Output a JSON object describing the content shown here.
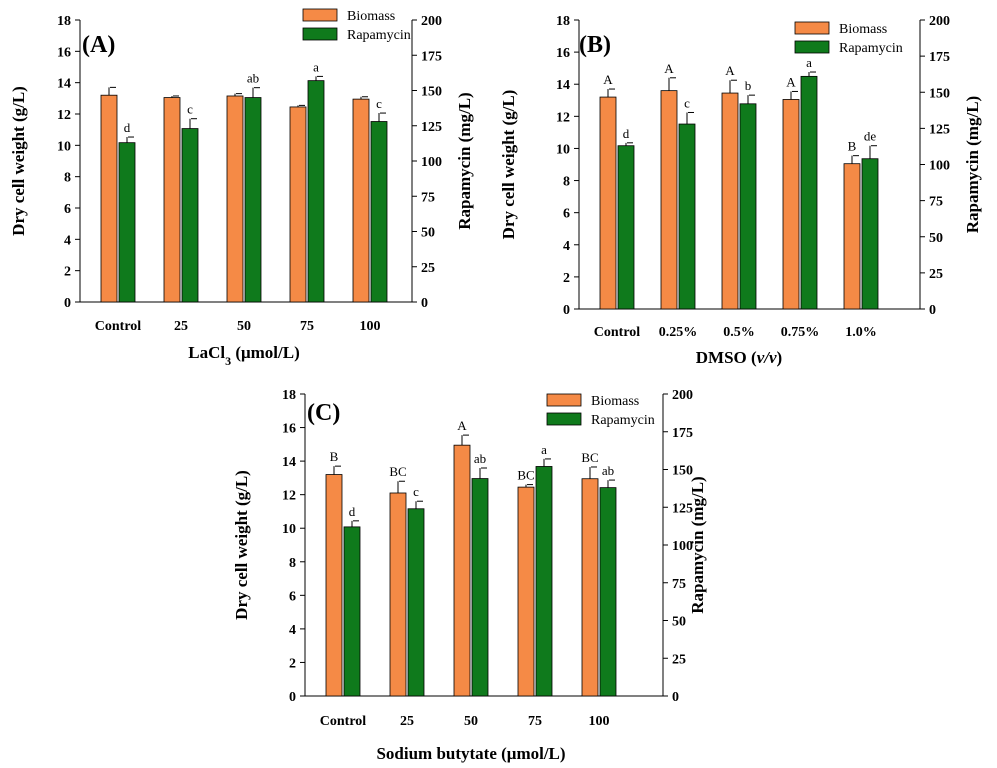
{
  "chart_data": [
    {
      "id": "A",
      "type": "bar",
      "panel_label": "(A)",
      "title": "",
      "xlabel_parts": [
        {
          "text": "LaCl",
          "style": "normal"
        },
        {
          "text": "3",
          "style": "sub"
        },
        {
          "text": " (μmol/L)",
          "style": "normal"
        }
      ],
      "ylabel": "Dry cell weight (g/L)",
      "y2label": "Rapamycin (mg/L)",
      "ylim": [
        0,
        18
      ],
      "y2lim": [
        0,
        200
      ],
      "yticks": [
        0,
        2,
        4,
        6,
        8,
        10,
        12,
        14,
        16,
        18
      ],
      "y2ticks": [
        0,
        25,
        50,
        75,
        100,
        125,
        150,
        175,
        200
      ],
      "categories": [
        "Control",
        "25",
        "50",
        "75",
        "100"
      ],
      "legend_position": "top-right",
      "series": [
        {
          "name": "Biomass",
          "axis": "left",
          "color": "#F58A46",
          "values": [
            13.2,
            13.05,
            13.15,
            12.45,
            12.95
          ],
          "errors": [
            0.5,
            0.1,
            0.15,
            0.1,
            0.15
          ],
          "labels": [
            "",
            "",
            "",
            "",
            ""
          ]
        },
        {
          "name": "Rapamycin",
          "axis": "right",
          "color": "#0F7A1C",
          "values": [
            113,
            123,
            145,
            157,
            128
          ],
          "errors": [
            4,
            7,
            7,
            3,
            6
          ],
          "labels": [
            "d",
            "c",
            "ab",
            "a",
            "c"
          ]
        }
      ]
    },
    {
      "id": "B",
      "type": "bar",
      "panel_label": "(B)",
      "title": "",
      "xlabel_parts": [
        {
          "text": "DMSO (",
          "style": "normal"
        },
        {
          "text": "v/v",
          "style": "italic"
        },
        {
          "text": ")",
          "style": "normal"
        }
      ],
      "ylabel": "Dry cell weight (g/L)",
      "y2label": "Rapamycin (mg/L)",
      "ylim": [
        0,
        18
      ],
      "y2lim": [
        0,
        200
      ],
      "yticks": [
        0,
        2,
        4,
        6,
        8,
        10,
        12,
        14,
        16,
        18
      ],
      "y2ticks": [
        0,
        25,
        50,
        75,
        100,
        125,
        150,
        175,
        200
      ],
      "categories": [
        "Control",
        "0.25%",
        "0.5%",
        "0.75%",
        "1.0%"
      ],
      "legend_position": "top-right",
      "series": [
        {
          "name": "Biomass",
          "axis": "left",
          "color": "#F58A46",
          "values": [
            13.2,
            13.6,
            13.45,
            13.05,
            9.05
          ],
          "errors": [
            0.5,
            0.8,
            0.8,
            0.5,
            0.5
          ],
          "labels": [
            "A",
            "A",
            "A",
            "A",
            "B"
          ]
        },
        {
          "name": "Rapamycin",
          "axis": "right",
          "color": "#0F7A1C",
          "values": [
            113,
            128,
            142,
            161,
            104
          ],
          "errors": [
            2,
            8,
            6,
            3,
            9
          ],
          "labels": [
            "d",
            "c",
            "b",
            "a",
            "de"
          ]
        }
      ]
    },
    {
      "id": "C",
      "type": "bar",
      "panel_label": "(C)",
      "title": "",
      "xlabel_parts": [
        {
          "text": "Sodium butytate (μmol/L)",
          "style": "normal"
        }
      ],
      "ylabel": "Dry cell weight (g/L)",
      "y2label": "Rapamycin (mg/L)",
      "ylim": [
        0,
        18
      ],
      "y2lim": [
        0,
        200
      ],
      "yticks": [
        0,
        2,
        4,
        6,
        8,
        10,
        12,
        14,
        16,
        18
      ],
      "y2ticks": [
        0,
        25,
        50,
        75,
        100,
        125,
        150,
        175,
        200
      ],
      "categories": [
        "Control",
        "25",
        "50",
        "75",
        "100"
      ],
      "legend_position": "top-right",
      "series": [
        {
          "name": "Biomass",
          "axis": "left",
          "color": "#F58A46",
          "values": [
            13.2,
            12.1,
            14.95,
            12.45,
            12.95
          ],
          "errors": [
            0.5,
            0.7,
            0.6,
            0.15,
            0.7
          ],
          "labels": [
            "B",
            "BC",
            "A",
            "BC",
            "BC"
          ]
        },
        {
          "name": "Rapamycin",
          "axis": "right",
          "color": "#0F7A1C",
          "values": [
            112,
            124,
            144,
            152,
            138
          ],
          "errors": [
            4,
            5,
            7,
            5,
            5
          ],
          "labels": [
            "d",
            "c",
            "ab",
            "a",
            "ab"
          ]
        }
      ]
    }
  ]
}
